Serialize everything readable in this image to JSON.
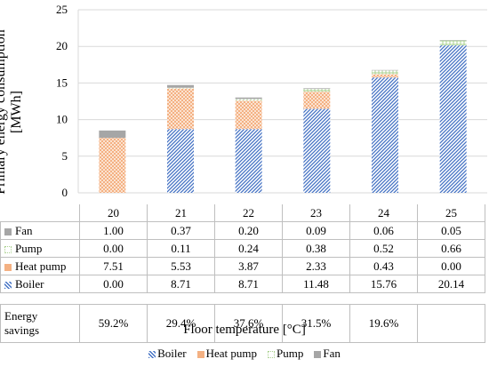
{
  "chart_data": {
    "type": "bar",
    "stacked": true,
    "categories": [
      "20",
      "21",
      "22",
      "23",
      "24",
      "25"
    ],
    "series": [
      {
        "name": "Boiler",
        "values": [
          0.0,
          8.71,
          8.71,
          11.48,
          15.76,
          20.14
        ],
        "color": "#4472c4",
        "pattern": "diagonal-hatch"
      },
      {
        "name": "Heat pump",
        "values": [
          7.51,
          5.53,
          3.87,
          2.33,
          0.43,
          0.0
        ],
        "color": "#f4b183",
        "pattern": "dotted"
      },
      {
        "name": "Pump",
        "values": [
          0.0,
          0.11,
          0.24,
          0.38,
          0.52,
          0.66
        ],
        "color": "#a9d18e",
        "pattern": "plus"
      },
      {
        "name": "Fan",
        "values": [
          1.0,
          0.37,
          0.2,
          0.09,
          0.06,
          0.05
        ],
        "color": "#a6a6a6",
        "pattern": "solid"
      }
    ],
    "table_rows": [
      {
        "label": "Fan",
        "values": [
          "1.00",
          "0.37",
          "0.20",
          "0.09",
          "0.06",
          "0.05"
        ]
      },
      {
        "label": "Pump",
        "values": [
          "0.00",
          "0.11",
          "0.24",
          "0.38",
          "0.52",
          "0.66"
        ]
      },
      {
        "label": "Heat pump",
        "values": [
          "7.51",
          "5.53",
          "3.87",
          "2.33",
          "0.43",
          "0.00"
        ]
      },
      {
        "label": "Boiler",
        "values": [
          "0.00",
          "8.71",
          "8.71",
          "11.48",
          "15.76",
          "20.14"
        ]
      }
    ],
    "savings": {
      "label_line1": "Energy",
      "label_line2": "savings",
      "values": [
        "59.2%",
        "29.4%",
        "37.6%",
        "31.5%",
        "19.6%",
        ""
      ]
    },
    "ylabel_line1": "Primary energy consumption",
    "ylabel_line2": "[MWh]",
    "xlabel": "Floor temperature [°C]",
    "ylim": [
      0,
      25
    ],
    "yticks": [
      "0",
      "5",
      "10",
      "15",
      "20",
      "25"
    ],
    "grid": true,
    "legend_position": "bottom"
  }
}
